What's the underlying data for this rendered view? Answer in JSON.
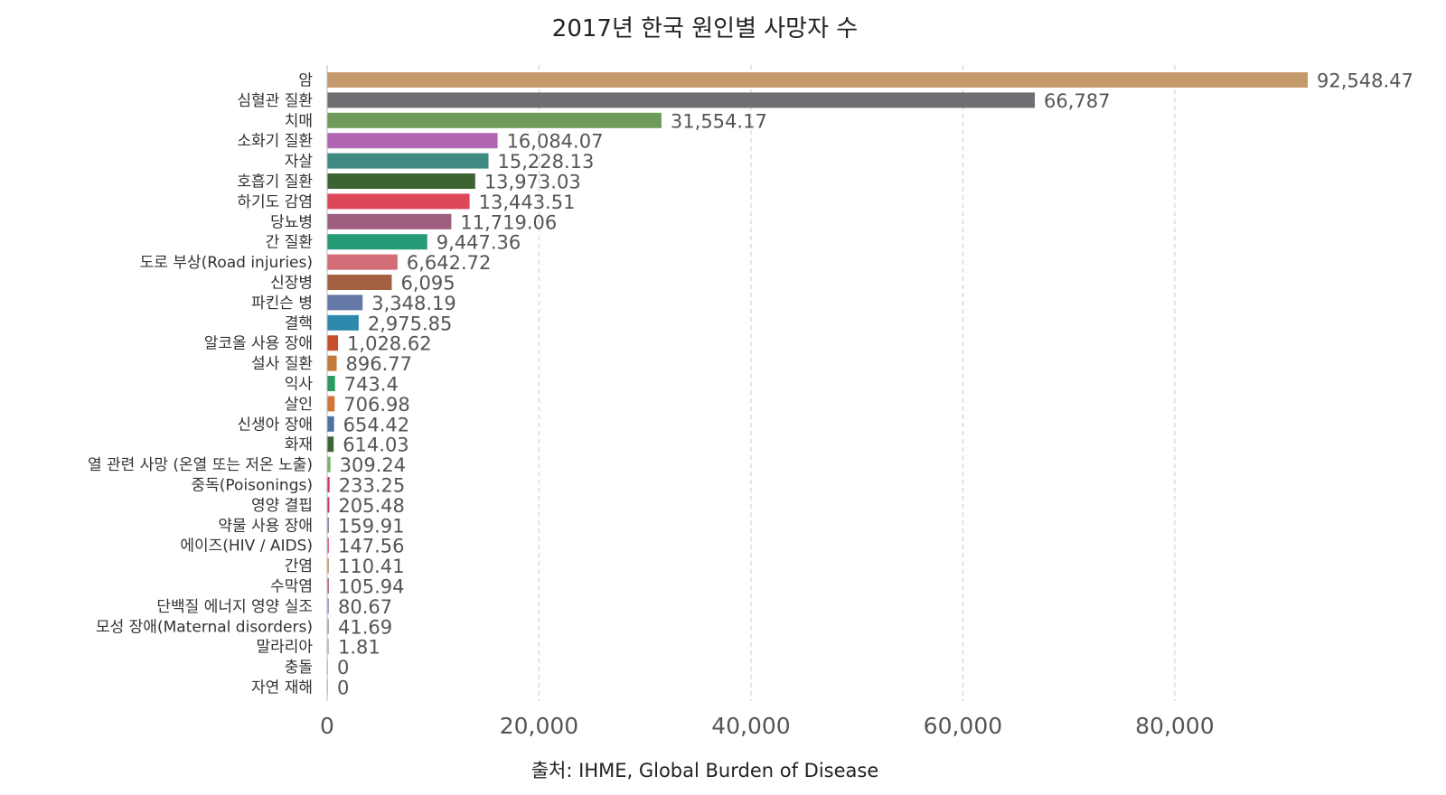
{
  "chart_data": {
    "type": "bar",
    "orientation": "horizontal",
    "title": "2017년 한국 원인별 사망자 수",
    "source": "출처: IHME, Global Burden of Disease",
    "xlim": [
      0,
      92548.47
    ],
    "x_ticks": [
      0,
      20000,
      40000,
      60000,
      80000
    ],
    "x_tick_labels": [
      "0",
      "20,000",
      "40,000",
      "60,000",
      "80,000"
    ],
    "grid": "vertical dashed",
    "categories": [
      "암",
      "심혈관 질환",
      "치매",
      "소화기 질환",
      "자살",
      "호흡기 질환",
      "하기도 감염",
      "당뇨병",
      "간 질환",
      "도로 부상(Road injuries)",
      "신장병",
      "파킨슨 병",
      "결핵",
      "알코올 사용 장애",
      "설사 질환",
      "익사",
      "살인",
      "신생아 장애",
      "화재",
      "열 관련 사망 (온열 또는 저온 노출)",
      "중독(Poisonings)",
      "영양 결핍",
      "약물 사용 장애",
      "에이즈(HIV / AIDS)",
      "간염",
      "수막염",
      "단백질 에너지 영양 실조",
      "모성 장애(Maternal disorders)",
      "말라리아",
      "충돌",
      "자연 재해"
    ],
    "values": [
      92548.47,
      66787,
      31554.17,
      16084.07,
      15228.13,
      13973.03,
      13443.51,
      11719.06,
      9447.36,
      6642.72,
      6095,
      3348.19,
      2975.85,
      1028.62,
      896.77,
      743.4,
      706.98,
      654.42,
      614.03,
      309.24,
      233.25,
      205.48,
      159.91,
      147.56,
      110.41,
      105.94,
      80.67,
      41.69,
      1.81,
      0,
      0
    ],
    "value_labels": [
      "92,548.47",
      "66,787",
      "31,554.17",
      "16,084.07",
      "15,228.13",
      "13,973.03",
      "13,443.51",
      "11,719.06",
      "9,447.36",
      "6,642.72",
      "6,095",
      "3,348.19",
      "2,975.85",
      "1,028.62",
      "896.77",
      "743.4",
      "706.98",
      "654.42",
      "614.03",
      "309.24",
      "233.25",
      "205.48",
      "159.91",
      "147.56",
      "110.41",
      "105.94",
      "80.67",
      "41.69",
      "1.81",
      "0",
      "0"
    ],
    "colors": [
      "#C49A6C",
      "#6D6F73",
      "#6E9B5C",
      "#B066B0",
      "#3F8A82",
      "#3C6433",
      "#DE4659",
      "#9E5F7E",
      "#259B78",
      "#D36D78",
      "#A36141",
      "#6579A8",
      "#2C89AB",
      "#C7502A",
      "#C47A3A",
      "#2B9B61",
      "#D0763D",
      "#4F74A0",
      "#3A6630",
      "#7BAF6A",
      "#D63A5E",
      "#C73B6E",
      "#8A8EA8",
      "#D26D97",
      "#C7A77A",
      "#B8707A",
      "#A89CC8",
      "#A8B0B8",
      "#C0C0C0",
      "#C0C0C0",
      "#C0C0C0"
    ]
  }
}
